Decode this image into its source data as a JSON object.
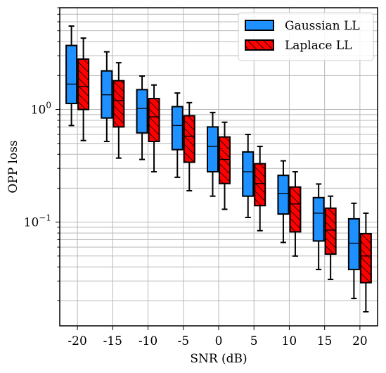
{
  "chart_data": {
    "type": "box",
    "yscale": "log",
    "xlabel": "SNR (dB)",
    "ylabel": "OPP loss",
    "categories": [
      "-20",
      "-15",
      "-10",
      "-5",
      "0",
      "5",
      "10",
      "15",
      "20"
    ],
    "ylim": [
      0.012,
      8.0
    ],
    "yticks": [
      {
        "value": 0.1,
        "label": "10",
        "exp": "−1"
      },
      {
        "value": 1,
        "label": "10",
        "exp": "0"
      }
    ],
    "grid": true,
    "legend_position": "top-right",
    "series": [
      {
        "name": "Gaussian LL",
        "color": "#1e90ff",
        "hatch": false,
        "boxes": [
          {
            "whislo": 0.72,
            "q1": 1.13,
            "med": 1.68,
            "q3": 3.7,
            "whishi": 5.5
          },
          {
            "whislo": 0.52,
            "q1": 0.84,
            "med": 1.35,
            "q3": 2.2,
            "whishi": 3.25
          },
          {
            "whislo": 0.36,
            "q1": 0.62,
            "med": 1.02,
            "q3": 1.5,
            "whishi": 1.98
          },
          {
            "whislo": 0.25,
            "q1": 0.44,
            "med": 0.72,
            "q3": 1.06,
            "whishi": 1.4
          },
          {
            "whislo": 0.17,
            "q1": 0.28,
            "med": 0.47,
            "q3": 0.7,
            "whishi": 0.94
          },
          {
            "whislo": 0.11,
            "q1": 0.17,
            "med": 0.28,
            "q3": 0.42,
            "whishi": 0.6
          },
          {
            "whislo": 0.066,
            "q1": 0.118,
            "med": 0.18,
            "q3": 0.26,
            "whishi": 0.35
          },
          {
            "whislo": 0.038,
            "q1": 0.068,
            "med": 0.12,
            "q3": 0.165,
            "whishi": 0.218
          },
          {
            "whislo": 0.021,
            "q1": 0.038,
            "med": 0.065,
            "q3": 0.107,
            "whishi": 0.147
          }
        ]
      },
      {
        "name": "Laplace LL",
        "color": "#ff0000",
        "hatch": true,
        "boxes": [
          {
            "whislo": 0.53,
            "q1": 1.0,
            "med": 1.6,
            "q3": 2.8,
            "whishi": 4.3
          },
          {
            "whislo": 0.37,
            "q1": 0.7,
            "med": 1.2,
            "q3": 1.8,
            "whishi": 2.6
          },
          {
            "whislo": 0.28,
            "q1": 0.52,
            "med": 0.86,
            "q3": 1.25,
            "whishi": 1.65
          },
          {
            "whislo": 0.19,
            "q1": 0.34,
            "med": 0.58,
            "q3": 0.88,
            "whishi": 1.15
          },
          {
            "whislo": 0.13,
            "q1": 0.22,
            "med": 0.36,
            "q3": 0.57,
            "whishi": 0.77
          },
          {
            "whislo": 0.084,
            "q1": 0.14,
            "med": 0.22,
            "q3": 0.33,
            "whishi": 0.47
          },
          {
            "whislo": 0.05,
            "q1": 0.082,
            "med": 0.145,
            "q3": 0.205,
            "whishi": 0.28
          },
          {
            "whislo": 0.031,
            "q1": 0.052,
            "med": 0.085,
            "q3": 0.133,
            "whishi": 0.17
          },
          {
            "whislo": 0.016,
            "q1": 0.029,
            "med": 0.05,
            "q3": 0.079,
            "whishi": 0.12
          }
        ]
      }
    ]
  }
}
